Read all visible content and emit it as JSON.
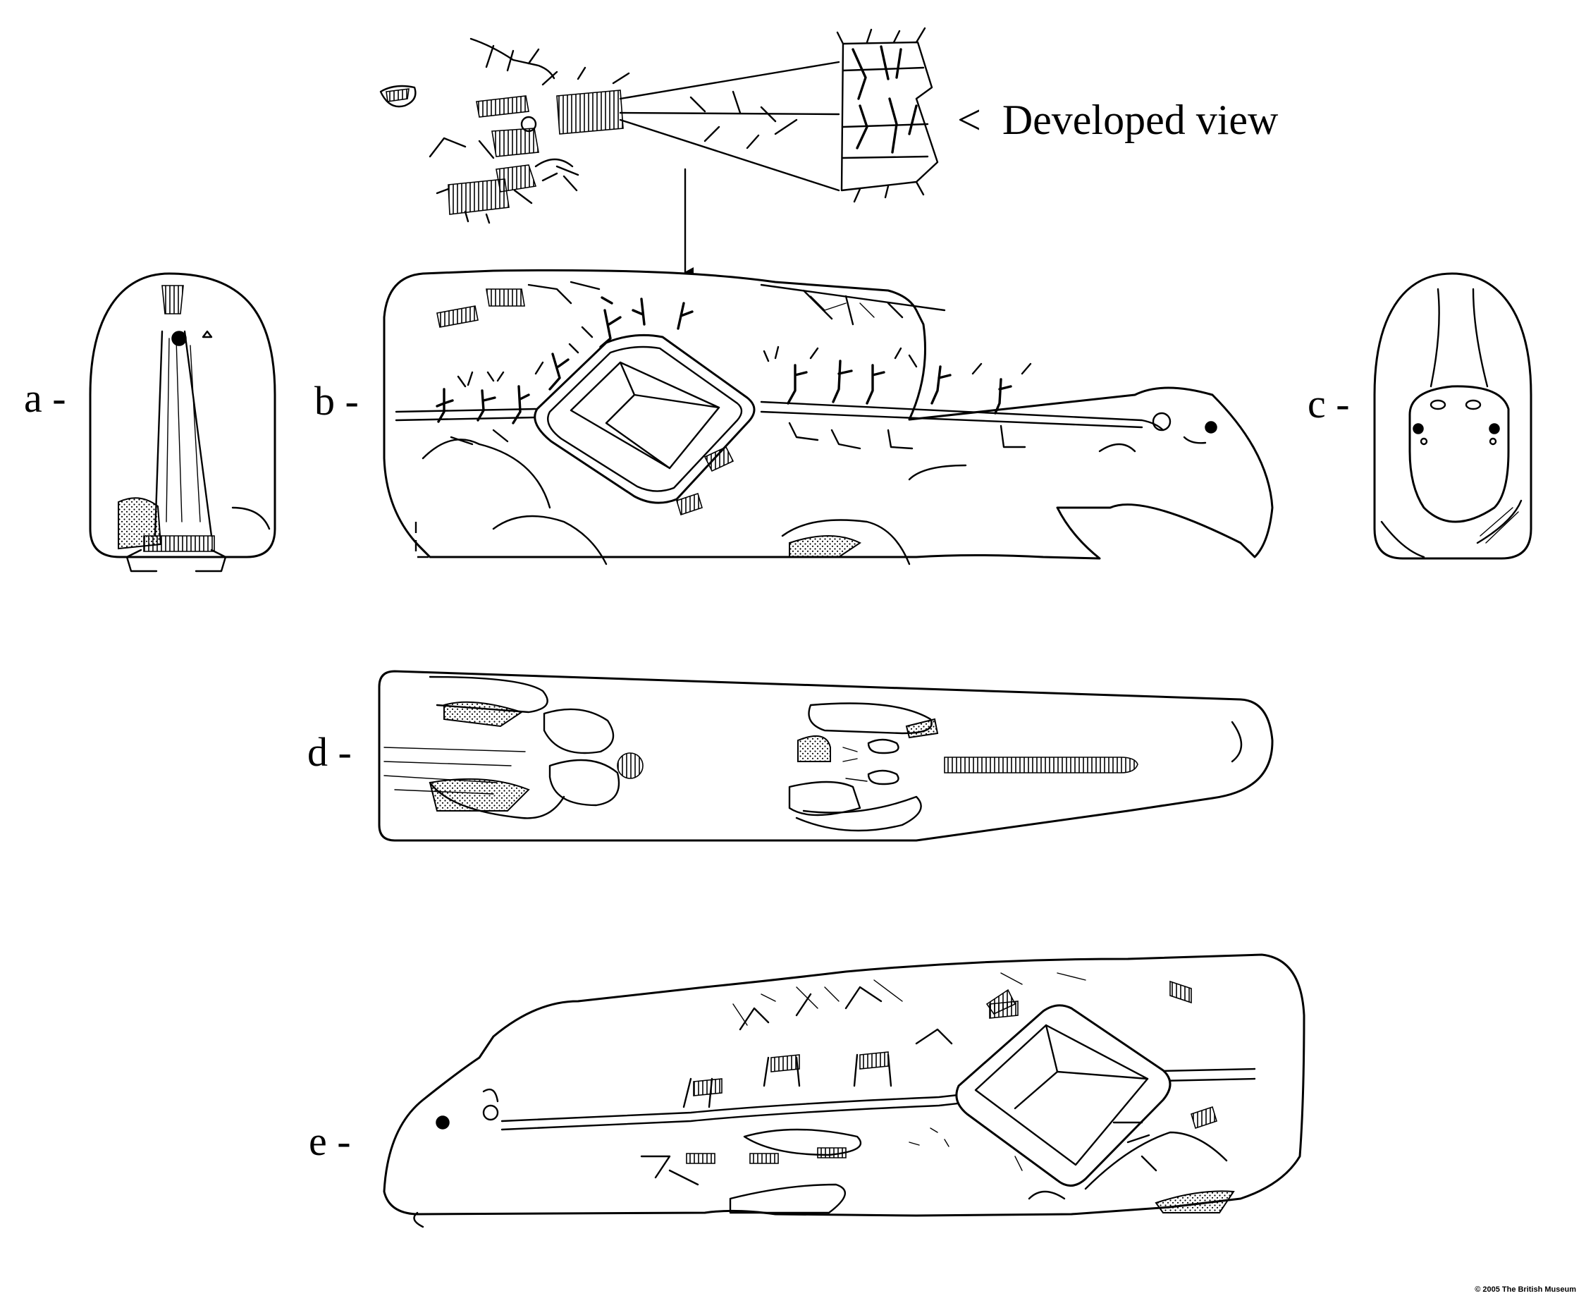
{
  "caption": {
    "developed_view": "<  Developed view"
  },
  "view_letters": {
    "a": "a -",
    "b": "b -",
    "c": "c -",
    "d": "d -",
    "e": "e -"
  },
  "copyright": "© 2005 The British Museum"
}
